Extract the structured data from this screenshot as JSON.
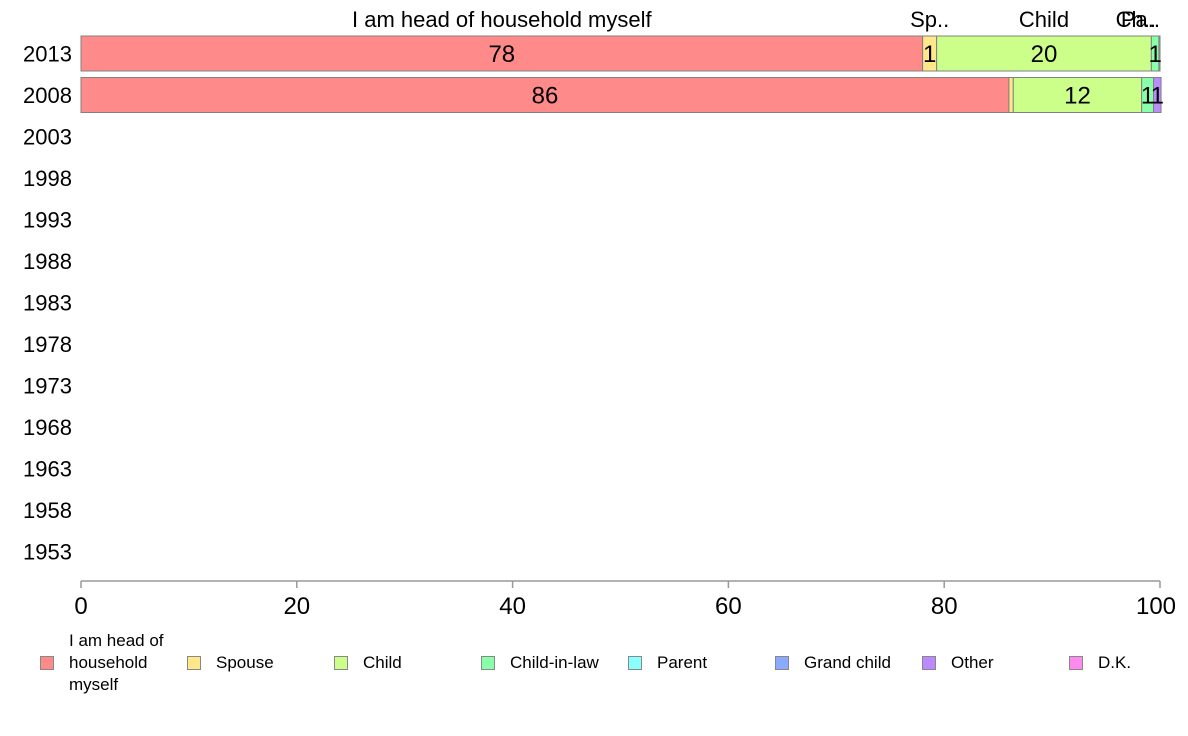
{
  "chart_data": {
    "type": "bar",
    "orientation": "horizontal",
    "stacked": true,
    "title": "",
    "xlabel": "",
    "ylabel": "",
    "xlim": [
      0,
      100
    ],
    "x_ticks": [
      "0",
      "20",
      "40",
      "60",
      "80",
      "100"
    ],
    "categories": [
      "2013",
      "2008",
      "2003",
      "1998",
      "1993",
      "1988",
      "1983",
      "1978",
      "1973",
      "1968",
      "1963",
      "1958",
      "1953"
    ],
    "top_labels": [
      "I am head of household myself",
      "Sp..",
      "Child",
      "Ch..",
      "Pa.."
    ],
    "series": [
      {
        "name": "I am head of household myself",
        "color": "#FF8A8A",
        "values": [
          78,
          86,
          null,
          null,
          null,
          null,
          null,
          null,
          null,
          null,
          null,
          null,
          null
        ],
        "labels": [
          "78",
          "86",
          "",
          "",
          "",
          "",
          "",
          "",
          "",
          "",
          "",
          "",
          ""
        ]
      },
      {
        "name": "Spouse",
        "color": "#FFE78A",
        "values": [
          1.3,
          0.4,
          null,
          null,
          null,
          null,
          null,
          null,
          null,
          null,
          null,
          null,
          null
        ],
        "labels": [
          "1",
          "",
          "",
          "",
          "",
          "",
          "",
          "",
          "",
          "",
          "",
          "",
          ""
        ]
      },
      {
        "name": "Child",
        "color": "#CCFF8A",
        "values": [
          19.9,
          11.9,
          null,
          null,
          null,
          null,
          null,
          null,
          null,
          null,
          null,
          null,
          null
        ],
        "labels": [
          "20",
          "12",
          "",
          "",
          "",
          "",
          "",
          "",
          "",
          "",
          "",
          "",
          ""
        ]
      },
      {
        "name": "Child-in-law",
        "color": "#8AFFAA",
        "values": [
          0.7,
          1.1,
          null,
          null,
          null,
          null,
          null,
          null,
          null,
          null,
          null,
          null,
          null
        ],
        "labels": [
          "1",
          "1",
          "",
          "",
          "",
          "",
          "",
          "",
          "",
          "",
          "",
          "",
          ""
        ]
      },
      {
        "name": "Parent",
        "color": "#8AFFFF",
        "values": [
          0.1,
          0.0,
          null,
          null,
          null,
          null,
          null,
          null,
          null,
          null,
          null,
          null,
          null
        ],
        "labels": [
          "",
          "",
          "",
          "",
          "",
          "",
          "",
          "",
          "",
          "",
          "",
          "",
          ""
        ]
      },
      {
        "name": "Grand child",
        "color": "#8AAAFF",
        "values": [
          0.0,
          0.0,
          null,
          null,
          null,
          null,
          null,
          null,
          null,
          null,
          null,
          null,
          null
        ],
        "labels": [
          "",
          "",
          "",
          "",
          "",
          "",
          "",
          "",
          "",
          "",
          "",
          "",
          ""
        ]
      },
      {
        "name": "Other",
        "color": "#BB8AFF",
        "values": [
          0.0,
          0.7,
          null,
          null,
          null,
          null,
          null,
          null,
          null,
          null,
          null,
          null,
          null
        ],
        "labels": [
          "",
          "1",
          "",
          "",
          "",
          "",
          "",
          "",
          "",
          "",
          "",
          "",
          ""
        ]
      },
      {
        "name": "D.K.",
        "color": "#FF8AEE",
        "values": [
          0.0,
          0.0,
          null,
          null,
          null,
          null,
          null,
          null,
          null,
          null,
          null,
          null,
          null
        ],
        "labels": [
          "",
          "",
          "",
          "",
          "",
          "",
          "",
          "",
          "",
          "",
          "",
          "",
          ""
        ]
      }
    ],
    "grid": false,
    "legend_position": "bottom"
  }
}
